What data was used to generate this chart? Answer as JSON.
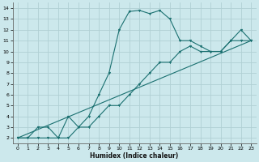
{
  "title": "",
  "xlabel": "Humidex (Indice chaleur)",
  "background_color": "#cce8ec",
  "grid_color": "#b0d0d4",
  "line_color": "#1a7070",
  "xlim": [
    -0.5,
    23.5
  ],
  "ylim": [
    1.5,
    14.5
  ],
  "xticks": [
    0,
    1,
    2,
    3,
    4,
    5,
    6,
    7,
    8,
    9,
    10,
    11,
    12,
    13,
    14,
    15,
    16,
    17,
    18,
    19,
    20,
    21,
    22,
    23
  ],
  "yticks": [
    2,
    3,
    4,
    5,
    6,
    7,
    8,
    9,
    10,
    11,
    12,
    13,
    14
  ],
  "series1_x": [
    0,
    1,
    2,
    3,
    4,
    5,
    6,
    7,
    8,
    9,
    10,
    11,
    12,
    13,
    14,
    15,
    16,
    17,
    18,
    19,
    20,
    21,
    22,
    23
  ],
  "series1_y": [
    2,
    2,
    3,
    3,
    2,
    4,
    3,
    4,
    6,
    8,
    12,
    13.7,
    13.8,
    13.5,
    13.8,
    13,
    11,
    11,
    10.5,
    10,
    10,
    11,
    12,
    11
  ],
  "series2_x": [
    0,
    1,
    2,
    3,
    4,
    5,
    6,
    7,
    8,
    9,
    10,
    11,
    12,
    13,
    14,
    15,
    16,
    17,
    18,
    19,
    20,
    21,
    22,
    23
  ],
  "series2_y": [
    2,
    2,
    2,
    2,
    2,
    2,
    3,
    3,
    4,
    5,
    5,
    6,
    7,
    8,
    9,
    9,
    10,
    10.5,
    10,
    10,
    10,
    11,
    11,
    11
  ],
  "series3_x": [
    0,
    23
  ],
  "series3_y": [
    2,
    11
  ]
}
